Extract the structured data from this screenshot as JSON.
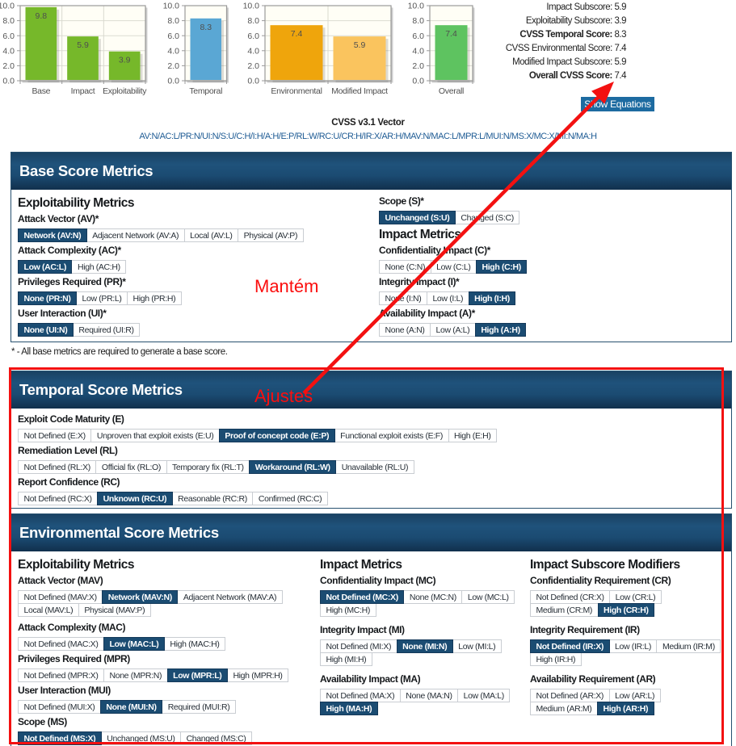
{
  "chart_data": [
    {
      "type": "bar",
      "categories": [
        "Base",
        "Impact",
        "Exploitability"
      ],
      "values": [
        9.8,
        5.9,
        3.9
      ],
      "bar_colors": [
        "#76b82a",
        "#76b82a",
        "#76b82a"
      ],
      "ylim": [
        0,
        10
      ],
      "yticks": [
        0,
        2,
        4,
        6,
        8,
        10
      ],
      "grid": true,
      "title": "",
      "xlabel": "",
      "ylabel": ""
    },
    {
      "type": "bar",
      "categories": [
        "Temporal"
      ],
      "values": [
        8.3
      ],
      "bar_colors": [
        "#5aa7d4"
      ],
      "ylim": [
        0,
        10
      ],
      "yticks": [
        0,
        2,
        4,
        6,
        8,
        10
      ],
      "grid": true,
      "title": "",
      "xlabel": "",
      "ylabel": ""
    },
    {
      "type": "bar",
      "categories": [
        "Environmental",
        "Modified Impact"
      ],
      "values": [
        7.4,
        5.9
      ],
      "bar_colors": [
        "#efa50c",
        "#fac45e"
      ],
      "ylim": [
        0,
        10
      ],
      "yticks": [
        0,
        2,
        4,
        6,
        8,
        10
      ],
      "grid": true,
      "title": "",
      "xlabel": "",
      "ylabel": ""
    },
    {
      "type": "bar",
      "categories": [
        "Overall"
      ],
      "values": [
        7.4
      ],
      "bar_colors": [
        "#5ec360"
      ],
      "ylim": [
        0,
        10
      ],
      "yticks": [
        0,
        2,
        4,
        6,
        8,
        10
      ],
      "grid": true,
      "title": "",
      "xlabel": "",
      "ylabel": ""
    }
  ],
  "scores": [
    {
      "label": "Impact Subscore:",
      "value": "5.9",
      "bold": false
    },
    {
      "label": "Exploitability Subscore:",
      "value": "3.9",
      "bold": false
    },
    {
      "label": "CVSS Temporal Score:",
      "value": "8.3",
      "bold": true
    },
    {
      "label": "CVSS Environmental Score:",
      "value": "7.4",
      "bold": false
    },
    {
      "label": "Modified Impact Subscore:",
      "value": "5.9",
      "bold": false
    },
    {
      "label": "Overall CVSS Score:",
      "value": "7.4",
      "bold": true
    }
  ],
  "equations_button_label": "Show Equations",
  "vector": {
    "title": "CVSS v3.1 Vector",
    "value": "AV:N/AC:L/PR:N/UI:N/S:U/C:H/I:H/A:H/E:P/RL:W/RC:U/CR:H/IR:X/AR:H/MAV:N/MAC:L/MPR:L/MUI:N/MS:X/MC:X/MI:N/MA:H"
  },
  "sections": {
    "base": {
      "title": "Base Score Metrics",
      "footnote": "* - All base metrics are required to generate a base score.",
      "left_column": [
        {
          "type": "heading",
          "text": "Exploitability Metrics"
        },
        {
          "type": "group",
          "label": "Attack Vector (AV)*",
          "rows": [
            [
              {
                "text": "Network (AV:N)",
                "sel": true
              },
              {
                "text": "Adjacent Network (AV:A)",
                "sel": false
              },
              {
                "text": "Local (AV:L)",
                "sel": false
              },
              {
                "text": "Physical (AV:P)",
                "sel": false
              }
            ]
          ]
        },
        {
          "type": "group",
          "label": "Attack Complexity (AC)*",
          "rows": [
            [
              {
                "text": "Low (AC:L)",
                "sel": true
              },
              {
                "text": "High (AC:H)",
                "sel": false
              }
            ]
          ]
        },
        {
          "type": "group",
          "label": "Privileges Required (PR)*",
          "rows": [
            [
              {
                "text": "None (PR:N)",
                "sel": true
              },
              {
                "text": "Low (PR:L)",
                "sel": false
              },
              {
                "text": "High (PR:H)",
                "sel": false
              }
            ]
          ]
        },
        {
          "type": "group",
          "label": "User Interaction (UI)*",
          "rows": [
            [
              {
                "text": "None (UI:N)",
                "sel": true
              },
              {
                "text": "Required (UI:R)",
                "sel": false
              }
            ]
          ]
        }
      ],
      "right_column": [
        {
          "type": "group",
          "label": "Scope (S)*",
          "rows": [
            [
              {
                "text": "Unchanged (S:U)",
                "sel": true
              },
              {
                "text": "Changed (S:C)",
                "sel": false
              }
            ]
          ]
        },
        {
          "type": "heading",
          "text": "Impact Metrics"
        },
        {
          "type": "group",
          "label": "Confidentiality Impact (C)*",
          "rows": [
            [
              {
                "text": "None (C:N)",
                "sel": false
              },
              {
                "text": "Low (C:L)",
                "sel": false
              },
              {
                "text": "High (C:H)",
                "sel": true
              }
            ]
          ]
        },
        {
          "type": "group",
          "label": "Integrity Impact (I)*",
          "rows": [
            [
              {
                "text": "None (I:N)",
                "sel": false
              },
              {
                "text": "Low (I:L)",
                "sel": false
              },
              {
                "text": "High (I:H)",
                "sel": true
              }
            ]
          ]
        },
        {
          "type": "group",
          "label": "Availability Impact (A)*",
          "rows": [
            [
              {
                "text": "None (A:N)",
                "sel": false
              },
              {
                "text": "Low (A:L)",
                "sel": false
              },
              {
                "text": "High (A:H)",
                "sel": true
              }
            ]
          ]
        }
      ]
    },
    "temporal": {
      "title": "Temporal Score Metrics",
      "column": [
        {
          "type": "group",
          "label": "Exploit Code Maturity (E)",
          "rows": [
            [
              {
                "text": "Not Defined (E:X)",
                "sel": false
              },
              {
                "text": "Unproven that exploit exists (E:U)",
                "sel": false
              },
              {
                "text": "Proof of concept code (E:P)",
                "sel": true
              },
              {
                "text": "Functional exploit exists (E:F)",
                "sel": false
              },
              {
                "text": "High (E:H)",
                "sel": false
              }
            ]
          ]
        },
        {
          "type": "group",
          "label": "Remediation Level (RL)",
          "rows": [
            [
              {
                "text": "Not Defined (RL:X)",
                "sel": false
              },
              {
                "text": "Official fix (RL:O)",
                "sel": false
              },
              {
                "text": "Temporary fix (RL:T)",
                "sel": false
              },
              {
                "text": "Workaround (RL:W)",
                "sel": true
              },
              {
                "text": "Unavailable (RL:U)",
                "sel": false
              }
            ]
          ]
        },
        {
          "type": "group",
          "label": "Report Confidence (RC)",
          "rows": [
            [
              {
                "text": "Not Defined (RC:X)",
                "sel": false
              },
              {
                "text": "Unknown (RC:U)",
                "sel": true
              },
              {
                "text": "Reasonable (RC:R)",
                "sel": false
              },
              {
                "text": "Confirmed (RC:C)",
                "sel": false
              }
            ]
          ]
        }
      ]
    },
    "environmental": {
      "title": "Environmental Score Metrics",
      "column1": [
        {
          "type": "heading",
          "text": "Exploitability Metrics"
        },
        {
          "type": "group",
          "gap": "wide-gap1",
          "label": "Attack Vector (MAV)",
          "rows": [
            [
              {
                "text": "Not Defined (MAV:X)",
                "sel": false
              },
              {
                "text": "Network (MAV:N)",
                "sel": true
              },
              {
                "text": "Adjacent Network (MAV:A)",
                "sel": false
              }
            ],
            [
              {
                "text": "Local (MAV:L)",
                "sel": false
              },
              {
                "text": "Physical (MAV:P)",
                "sel": false
              }
            ]
          ]
        },
        {
          "type": "group",
          "label": "Attack Complexity (MAC)",
          "rows": [
            [
              {
                "text": "Not Defined (MAC:X)",
                "sel": false
              },
              {
                "text": "Low (MAC:L)",
                "sel": true
              },
              {
                "text": "High (MAC:H)",
                "sel": false
              }
            ]
          ]
        },
        {
          "type": "group",
          "label": "Privileges Required (MPR)",
          "rows": [
            [
              {
                "text": "Not Defined (MPR:X)",
                "sel": false
              },
              {
                "text": "None (MPR:N)",
                "sel": false
              },
              {
                "text": "Low (MPR:L)",
                "sel": true
              },
              {
                "text": "High (MPR:H)",
                "sel": false
              }
            ]
          ]
        },
        {
          "type": "group",
          "label": "User Interaction (MUI)",
          "rows": [
            [
              {
                "text": "Not Defined (MUI:X)",
                "sel": false
              },
              {
                "text": "None (MUI:N)",
                "sel": true
              },
              {
                "text": "Required (MUI:R)",
                "sel": false
              }
            ]
          ]
        },
        {
          "type": "group",
          "label": "Scope (MS)",
          "rows": [
            [
              {
                "text": "Not Defined (MS:X)",
                "sel": true
              },
              {
                "text": "Unchanged (MS:U)",
                "sel": false
              },
              {
                "text": "Changed (MS:C)",
                "sel": false
              }
            ]
          ]
        }
      ],
      "column2": [
        {
          "type": "heading",
          "text": "Impact Metrics"
        },
        {
          "type": "group",
          "gap": "wide-gap",
          "label": "Confidentiality Impact (MC)",
          "rows": [
            [
              {
                "text": "Not Defined (MC:X)",
                "sel": true
              },
              {
                "text": "None (MC:N)",
                "sel": false
              },
              {
                "text": "Low (MC:L)",
                "sel": false
              }
            ],
            [
              {
                "text": "High (MC:H)",
                "sel": false
              }
            ]
          ]
        },
        {
          "type": "group",
          "gap": "wide-gap",
          "label": "Integrity Impact (MI)",
          "rows": [
            [
              {
                "text": "Not Defined (MI:X)",
                "sel": false
              },
              {
                "text": "None (MI:N)",
                "sel": true
              },
              {
                "text": "Low (MI:L)",
                "sel": false
              }
            ],
            [
              {
                "text": "High (MI:H)",
                "sel": false
              }
            ]
          ]
        },
        {
          "type": "group",
          "gap": "wide-gap",
          "label": "Availability Impact (MA)",
          "rows": [
            [
              {
                "text": "Not Defined (MA:X)",
                "sel": false
              },
              {
                "text": "None (MA:N)",
                "sel": false
              },
              {
                "text": "Low (MA:L)",
                "sel": false
              }
            ],
            [
              {
                "text": "High (MA:H)",
                "sel": true
              }
            ]
          ]
        }
      ],
      "column3": [
        {
          "type": "heading",
          "text": "Impact Subscore Modifiers"
        },
        {
          "type": "group",
          "gap": "wide-gap",
          "label": "Confidentiality Requirement (CR)",
          "rows": [
            [
              {
                "text": "Not Defined (CR:X)",
                "sel": false
              },
              {
                "text": "Low (CR:L)",
                "sel": false
              }
            ],
            [
              {
                "text": "Medium (CR:M)",
                "sel": false
              },
              {
                "text": "High (CR:H)",
                "sel": true
              }
            ]
          ]
        },
        {
          "type": "group",
          "gap": "wide-gap",
          "label": "Integrity Requirement (IR)",
          "rows": [
            [
              {
                "text": "Not Defined (IR:X)",
                "sel": true
              },
              {
                "text": "Low (IR:L)",
                "sel": false
              },
              {
                "text": "Medium (IR:M)",
                "sel": false
              }
            ],
            [
              {
                "text": "High (IR:H)",
                "sel": false
              }
            ]
          ]
        },
        {
          "type": "group",
          "gap": "wide-gap",
          "label": "Availability Requirement (AR)",
          "rows": [
            [
              {
                "text": "Not Defined (AR:X)",
                "sel": false
              },
              {
                "text": "Low (AR:L)",
                "sel": false
              }
            ],
            [
              {
                "text": "Medium (AR:M)",
                "sel": false
              },
              {
                "text": "High (AR:H)",
                "sel": true
              }
            ]
          ]
        }
      ]
    }
  },
  "annotations": {
    "keep_text": "Mantém",
    "adjust_text": "Ajustes",
    "color": "#f31111"
  },
  "style": {
    "selected_button_color": "#1b4c72",
    "header_gradient_top": "#1c4868",
    "header_gradient_bottom": "#11304d",
    "link_color": "#1e5b94",
    "plot_background": "#fffef6"
  }
}
